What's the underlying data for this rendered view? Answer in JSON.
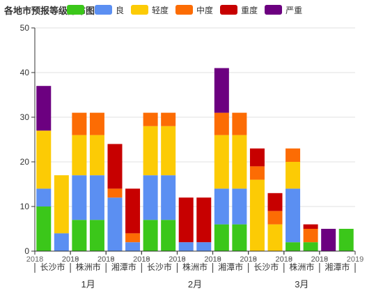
{
  "chart_data": {
    "type": "bar",
    "title": "各地市预报等级分布图",
    "stacked": true,
    "x": {
      "months": [
        {
          "label": "1月",
          "cities": [
            {
              "name": "长沙市",
              "years": [
                "2018",
                "2019"
              ]
            },
            {
              "name": "株洲市",
              "years": [
                "2018",
                "2019"
              ]
            },
            {
              "name": "湘潭市",
              "years": [
                "2018",
                "2019"
              ]
            }
          ]
        },
        {
          "label": "2月",
          "cities": [
            {
              "name": "长沙市",
              "years": [
                "2018",
                "2019"
              ]
            },
            {
              "name": "株洲市",
              "years": [
                "2018",
                "2019"
              ]
            },
            {
              "name": "湘潭市",
              "years": [
                "2018",
                "2019"
              ]
            }
          ]
        },
        {
          "label": "3月",
          "cities": [
            {
              "name": "长沙市",
              "years": [
                "2018",
                "2019"
              ]
            },
            {
              "name": "株洲市",
              "years": [
                "2018",
                "2019"
              ]
            },
            {
              "name": "湘潭市",
              "years": [
                "2018",
                "2019"
              ]
            }
          ]
        }
      ]
    },
    "series": [
      {
        "name": "优",
        "color": "#3bc71a",
        "values": [
          10,
          0,
          7,
          7,
          0,
          0,
          7,
          7,
          0,
          0,
          6,
          6,
          0,
          0,
          2,
          2,
          0,
          5
        ]
      },
      {
        "name": "良",
        "color": "#5b8ff2",
        "values": [
          4,
          4,
          10,
          10,
          12,
          2,
          10,
          10,
          2,
          2,
          8,
          8,
          0,
          0,
          12,
          0,
          0,
          0
        ]
      },
      {
        "name": "轻度",
        "color": "#fccb05",
        "values": [
          13,
          13,
          9,
          9,
          0,
          0,
          11,
          11,
          0,
          0,
          12,
          12,
          16,
          6,
          6,
          0,
          0,
          0
        ]
      },
      {
        "name": "中度",
        "color": "#fc6c04",
        "values": [
          0,
          0,
          5,
          5,
          2,
          2,
          3,
          3,
          0,
          0,
          5,
          5,
          3,
          3,
          3,
          3,
          0,
          0
        ]
      },
      {
        "name": "重度",
        "color": "#c70000",
        "values": [
          0,
          0,
          0,
          0,
          10,
          10,
          0,
          0,
          10,
          10,
          0,
          0,
          4,
          4,
          0,
          1,
          0,
          0
        ]
      },
      {
        "name": "严重",
        "color": "#6c0080",
        "values": [
          10,
          0,
          0,
          0,
          0,
          0,
          0,
          0,
          0,
          0,
          10,
          0,
          0,
          0,
          0,
          0,
          5,
          0
        ]
      }
    ],
    "ylim": [
      0,
      50
    ],
    "yticks": [
      0,
      10,
      20,
      30,
      40,
      50
    ],
    "grid": true,
    "legend_position": "top"
  }
}
